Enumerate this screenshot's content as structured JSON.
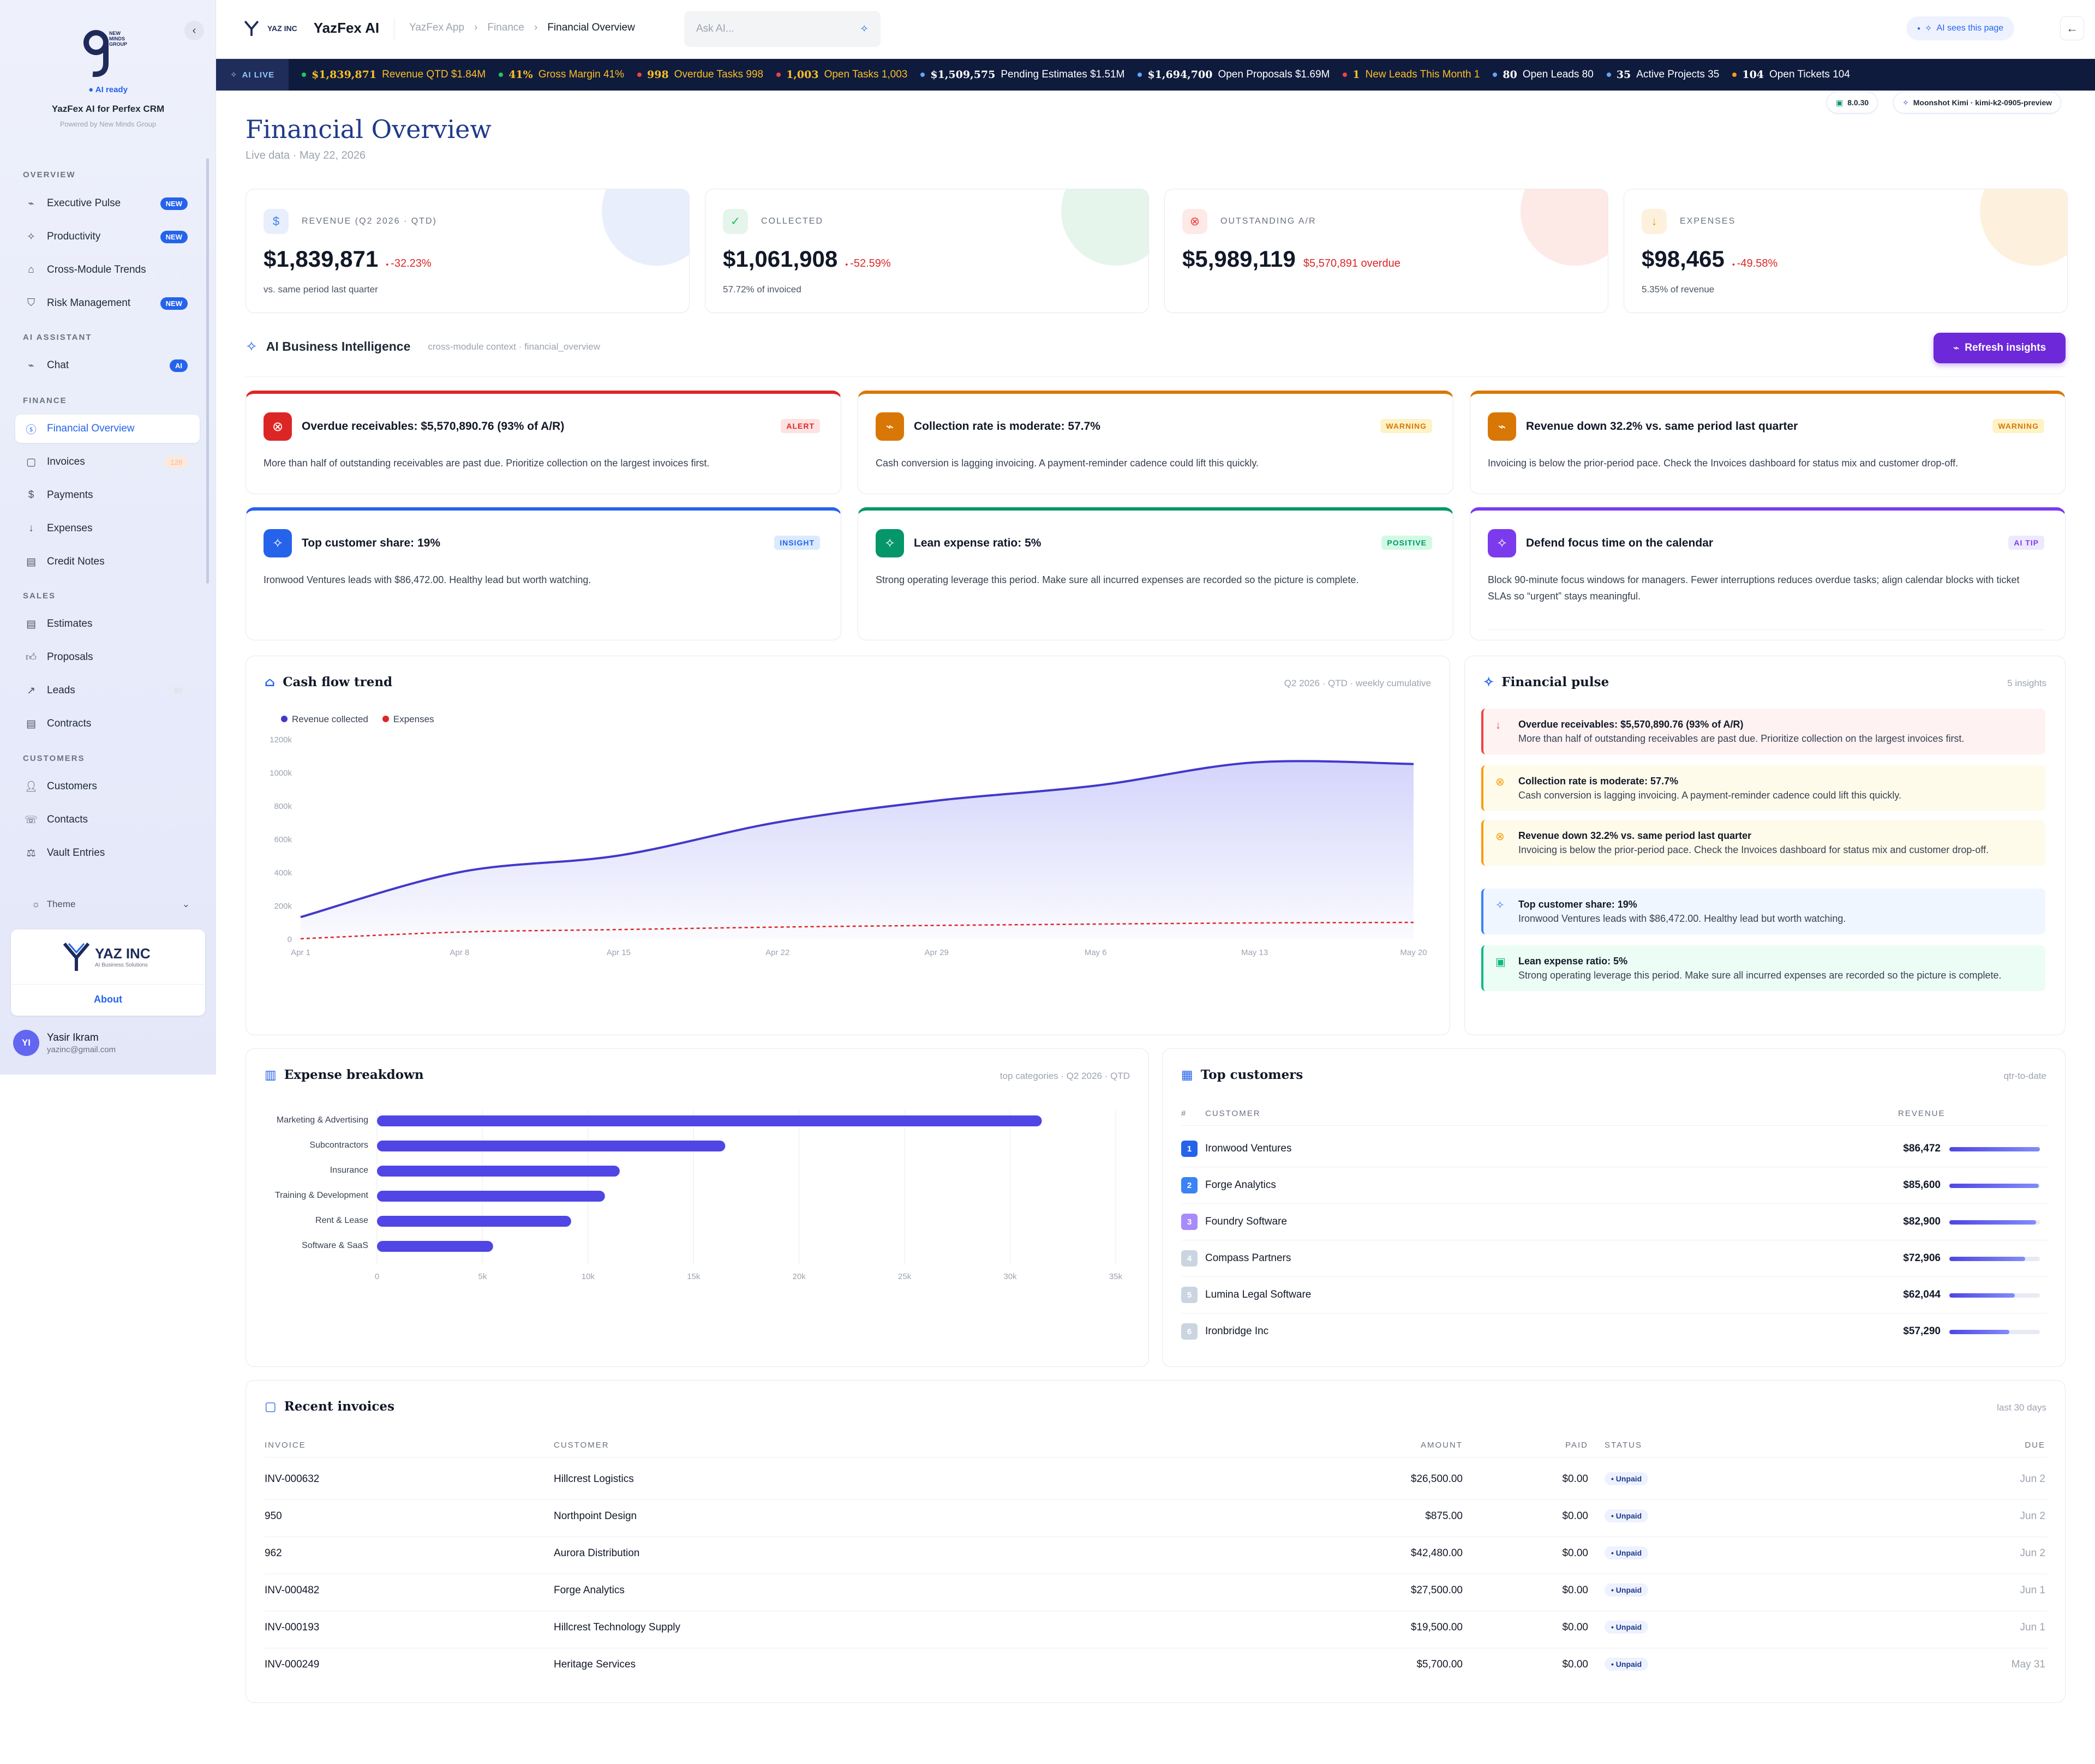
{
  "sidebar": {
    "ai_ready": "AI ready",
    "app_name": "YazFex AI for Perfex CRM",
    "powered": "Powered by New Minds Group",
    "logo_text": "NEW MINDS GROUP",
    "sections": [
      {
        "label": "OVERVIEW"
      },
      {
        "label": "AI ASSISTANT"
      },
      {
        "label": "FINANCE"
      },
      {
        "label": "SALES"
      },
      {
        "label": "CUSTOMERS"
      }
    ],
    "items": [
      {
        "label": "Executive Pulse",
        "icon": "pulse-icon",
        "badge": "NEW"
      },
      {
        "label": "Productivity",
        "icon": "sparkle-icon",
        "badge": "NEW"
      },
      {
        "label": "Cross-Module Trends",
        "icon": "home-icon"
      },
      {
        "label": "Risk Management",
        "icon": "shield-icon",
        "badge": "NEW"
      },
      {
        "label": "Chat",
        "icon": "pulse-icon",
        "badge": "AI"
      },
      {
        "label": "Financial Overview",
        "icon": "dollar-circle-icon"
      },
      {
        "label": "Invoices",
        "icon": "clipboard-icon",
        "badge": "128"
      },
      {
        "label": "Payments",
        "icon": "dollar-icon"
      },
      {
        "label": "Expenses",
        "icon": "arrow-down-icon"
      },
      {
        "label": "Credit Notes",
        "icon": "document-icon"
      },
      {
        "label": "Estimates",
        "icon": "document-icon"
      },
      {
        "label": "Proposals",
        "icon": "thumbs-up-icon"
      },
      {
        "label": "Leads",
        "icon": "trend-icon",
        "badge": "80"
      },
      {
        "label": "Contracts",
        "icon": "document-icon"
      },
      {
        "label": "Customers",
        "icon": "user-icon"
      },
      {
        "label": "Contacts",
        "icon": "contact-icon"
      },
      {
        "label": "Vault Entries",
        "icon": "scale-icon"
      }
    ],
    "theme_label": "Theme",
    "about_brand": "YAZ INC",
    "about_brand_sub": "AI Business Solutions",
    "about_label": "About",
    "user": {
      "initials": "YI",
      "name": "Yasir Ikram",
      "email": "yazinc@gmail.com"
    }
  },
  "topbar": {
    "brand_logo": "YAZ INC",
    "brand_name": "YazFex AI",
    "crumbs": [
      "YazFex App",
      "Finance",
      "Financial Overview"
    ],
    "ask_placeholder": "Ask AI...",
    "ai_sees": "AI sees this page"
  },
  "ticker": {
    "live_label": "AI LIVE",
    "items": [
      {
        "value": "$1,839,871",
        "label": "Revenue QTD $1.84M",
        "color": "#fbbf24",
        "dot": "#22c55e"
      },
      {
        "value": "41%",
        "label": "Gross Margin 41%",
        "color": "#fbbf24",
        "dot": "#22c55e"
      },
      {
        "value": "998",
        "label": "Overdue Tasks 998",
        "color": "#fbbf24",
        "dot": "#ef4444"
      },
      {
        "value": "1,003",
        "label": "Open Tasks 1,003",
        "color": "#fbbf24",
        "dot": "#ef4444"
      },
      {
        "value": "$1,509,575",
        "label": "Pending Estimates $1.51M",
        "color": "#ffffff",
        "dot": "#60a5fa"
      },
      {
        "value": "$1,694,700",
        "label": "Open Proposals $1.69M",
        "color": "#ffffff",
        "dot": "#60a5fa"
      },
      {
        "value": "1",
        "label": "New Leads This Month 1",
        "color": "#fbbf24",
        "dot": "#ef4444"
      },
      {
        "value": "80",
        "label": "Open Leads 80",
        "color": "#ffffff",
        "dot": "#60a5fa"
      },
      {
        "value": "35",
        "label": "Active Projects 35",
        "color": "#ffffff",
        "dot": "#60a5fa"
      },
      {
        "value": "104",
        "label": "Open Tickets 104",
        "color": "#ffffff",
        "dot": "#f59e0b"
      }
    ]
  },
  "chips": {
    "version": "8.0.30",
    "model": "Moonshot Kimi · kimi-k2-0905-preview"
  },
  "page": {
    "title": "Financial Overview",
    "subtitle": "Live data · May 22, 2026"
  },
  "kpis": [
    {
      "label": "REVENUE (Q2 2026 · QTD)",
      "value": "$1,839,871",
      "delta": "-32.23%",
      "sub": "vs. same period last quarter",
      "icon": "dollar-circle-icon",
      "accent": "#3b82f6"
    },
    {
      "label": "COLLECTED",
      "value": "$1,061,908",
      "delta": "-52.59%",
      "sub": "57.72% of invoiced",
      "icon": "clipboard-check-icon",
      "accent": "#22c55e"
    },
    {
      "label": "OUTSTANDING A/R",
      "value": "$5,989,119",
      "delta": "$5,570,891 overdue",
      "sub": "",
      "icon": "x-circle-icon",
      "accent": "#ef4444"
    },
    {
      "label": "EXPENSES",
      "value": "$98,465",
      "delta": "-49.58%",
      "sub": "5.35% of revenue",
      "icon": "arrow-down-icon",
      "accent": "#f59e0b"
    }
  ],
  "ai_bi": {
    "title": "AI Business Intelligence",
    "context": "cross-module context · financial_overview",
    "refresh": "Refresh insights"
  },
  "insights": [
    {
      "title": "Overdue receivables: $5,570,890.76 (93% of A/R)",
      "tag": "ALERT",
      "body": "More than half of outstanding receivables are past due. Prioritize collection on the largest invoices first.",
      "color": "#dc2626",
      "icon": "x-circle-icon"
    },
    {
      "title": "Collection rate is moderate: 57.7%",
      "tag": "WARNING",
      "body": "Cash conversion is lagging invoicing. A payment-reminder cadence could lift this quickly.",
      "color": "#d97706",
      "icon": "pulse-icon"
    },
    {
      "title": "Revenue down 32.2% vs. same period last quarter",
      "tag": "WARNING",
      "body": "Invoicing is below the prior-period pace. Check the Invoices dashboard for status mix and customer drop-off.",
      "color": "#d97706",
      "icon": "pulse-icon"
    },
    {
      "title": "Top customer share: 19%",
      "tag": "INSIGHT",
      "body": "Ironwood Ventures leads with $86,472.00. Healthy lead but worth watching.",
      "color": "#2563eb",
      "icon": "sparkle-icon"
    },
    {
      "title": "Lean expense ratio: 5%",
      "tag": "POSITIVE",
      "body": "Strong operating leverage this period. Make sure all incurred expenses are recorded so the picture is complete.",
      "color": "#059669",
      "icon": "sparkle-icon"
    },
    {
      "title": "Defend focus time on the calendar",
      "tag": "AI TIP",
      "body": "Block 90-minute focus windows for managers. Fewer interruptions reduces overdue tasks; align calendar blocks with ticket SLAs so “urgent” stays meaningful.",
      "color": "#7c3aed",
      "icon": "sparkle-icon"
    }
  ],
  "cashflow": {
    "title": "Cash flow trend",
    "meta": "Q2 2026 · QTD · weekly cumulative"
  },
  "pulse": {
    "title": "Financial pulse",
    "meta": "5 insights",
    "items": [
      {
        "title": "Overdue receivables: $5,570,890.76 (93% of A/R)",
        "body": "More than half of outstanding receivables are past due. Prioritize collection on the largest invoices first.",
        "bg": "#fef2f2",
        "border": "#ef4444",
        "icon": "arrow-down-icon"
      },
      {
        "title": "Collection rate is moderate: 57.7%",
        "body": "Cash conversion is lagging invoicing. A payment-reminder cadence could lift this quickly.",
        "bg": "#fffbeb",
        "border": "#f59e0b",
        "icon": "x-circle-icon"
      },
      {
        "title": "Revenue down 32.2% vs. same period last quarter",
        "body": "Invoicing is below the prior-period pace. Check the Invoices dashboard for status mix and customer drop-off.",
        "bg": "#fffbeb",
        "border": "#f59e0b",
        "icon": "x-circle-icon"
      },
      {
        "title": "Top customer share: 19%",
        "body": "Ironwood Ventures leads with $86,472.00. Healthy lead but worth watching.",
        "bg": "#eff6ff",
        "border": "#3b82f6",
        "icon": "sparkle-icon"
      },
      {
        "title": "Lean expense ratio: 5%",
        "body": "Strong operating leverage this period. Make sure all incurred expenses are recorded so the picture is complete.",
        "bg": "#ecfdf5",
        "border": "#10b981",
        "icon": "clipboard-check-icon"
      }
    ]
  },
  "expense": {
    "title": "Expense breakdown",
    "meta": "top categories · Q2 2026 · QTD"
  },
  "top_customers": {
    "title": "Top customers",
    "meta": "qtr-to-date",
    "col_rank": "#",
    "col_customer": "CUSTOMER",
    "col_revenue": "REVENUE",
    "rows": [
      {
        "rank": "1",
        "name": "Ironwood Ventures",
        "revenue": "$86,472",
        "share": 1.0,
        "color": "#2563eb"
      },
      {
        "rank": "2",
        "name": "Forge Analytics",
        "revenue": "$85,600",
        "share": 0.99,
        "color": "#3b82f6"
      },
      {
        "rank": "3",
        "name": "Foundry Software",
        "revenue": "$82,900",
        "share": 0.96,
        "color": "#a78bfa"
      },
      {
        "rank": "4",
        "name": "Compass Partners",
        "revenue": "$72,906",
        "share": 0.84,
        "color": "#cbd5e1"
      },
      {
        "rank": "5",
        "name": "Lumina Legal Software",
        "revenue": "$62,044",
        "share": 0.72,
        "color": "#cbd5e1"
      },
      {
        "rank": "6",
        "name": "Ironbridge Inc",
        "revenue": "$57,290",
        "share": 0.66,
        "color": "#cbd5e1"
      }
    ]
  },
  "invoices": {
    "title": "Recent invoices",
    "meta": "last 30 days",
    "headers": [
      "INVOICE",
      "CUSTOMER",
      "AMOUNT",
      "PAID",
      "STATUS",
      "DUE"
    ],
    "rows": [
      {
        "invoice": "INV-000632",
        "customer": "Hillcrest Logistics",
        "amount": "$26,500.00",
        "paid": "$0.00",
        "status": "Unpaid",
        "due": "Jun 2"
      },
      {
        "invoice": "950",
        "customer": "Northpoint Design",
        "amount": "$875.00",
        "paid": "$0.00",
        "status": "Unpaid",
        "due": "Jun 2"
      },
      {
        "invoice": "962",
        "customer": "Aurora Distribution",
        "amount": "$42,480.00",
        "paid": "$0.00",
        "status": "Unpaid",
        "due": "Jun 2"
      },
      {
        "invoice": "INV-000482",
        "customer": "Forge Analytics",
        "amount": "$27,500.00",
        "paid": "$0.00",
        "status": "Unpaid",
        "due": "Jun 1"
      },
      {
        "invoice": "INV-000193",
        "customer": "Hillcrest Technology Supply",
        "amount": "$19,500.00",
        "paid": "$0.00",
        "status": "Unpaid",
        "due": "Jun 1"
      },
      {
        "invoice": "INV-000249",
        "customer": "Heritage Services",
        "amount": "$5,700.00",
        "paid": "$0.00",
        "status": "Unpaid",
        "due": "May 31"
      }
    ]
  },
  "chart_data": [
    {
      "type": "area",
      "x": [
        "Apr 1",
        "Apr 8",
        "Apr 15",
        "Apr 22",
        "Apr 29",
        "May 6",
        "May 13",
        "May 20"
      ],
      "series": [
        {
          "name": "Revenue collected",
          "color": "#4338ca",
          "values": [
            130,
            400,
            500,
            700,
            830,
            920,
            1060,
            1050
          ]
        },
        {
          "name": "Expenses",
          "color": "#dc2626",
          "values": [
            0,
            40,
            55,
            70,
            80,
            88,
            95,
            98
          ]
        }
      ],
      "yticks": [
        "0",
        "200k",
        "400k",
        "600k",
        "800k",
        "1000k",
        "1200k"
      ],
      "ylim": [
        0,
        1200
      ],
      "legend": "top-left",
      "grid": false
    },
    {
      "type": "bar",
      "orientation": "horizontal",
      "categories": [
        "Marketing & Advertising",
        "Subcontractors",
        "Insurance",
        "Training & Development",
        "Rent & Lease",
        "Software & SaaS"
      ],
      "values": [
        31500,
        16500,
        11500,
        10800,
        9200,
        5500
      ],
      "xticks": [
        "0",
        "5k",
        "10k",
        "15k",
        "20k",
        "25k",
        "30k",
        "35k"
      ],
      "xlim": [
        0,
        35000
      ],
      "color": "#4f46e5",
      "grid": true
    }
  ]
}
